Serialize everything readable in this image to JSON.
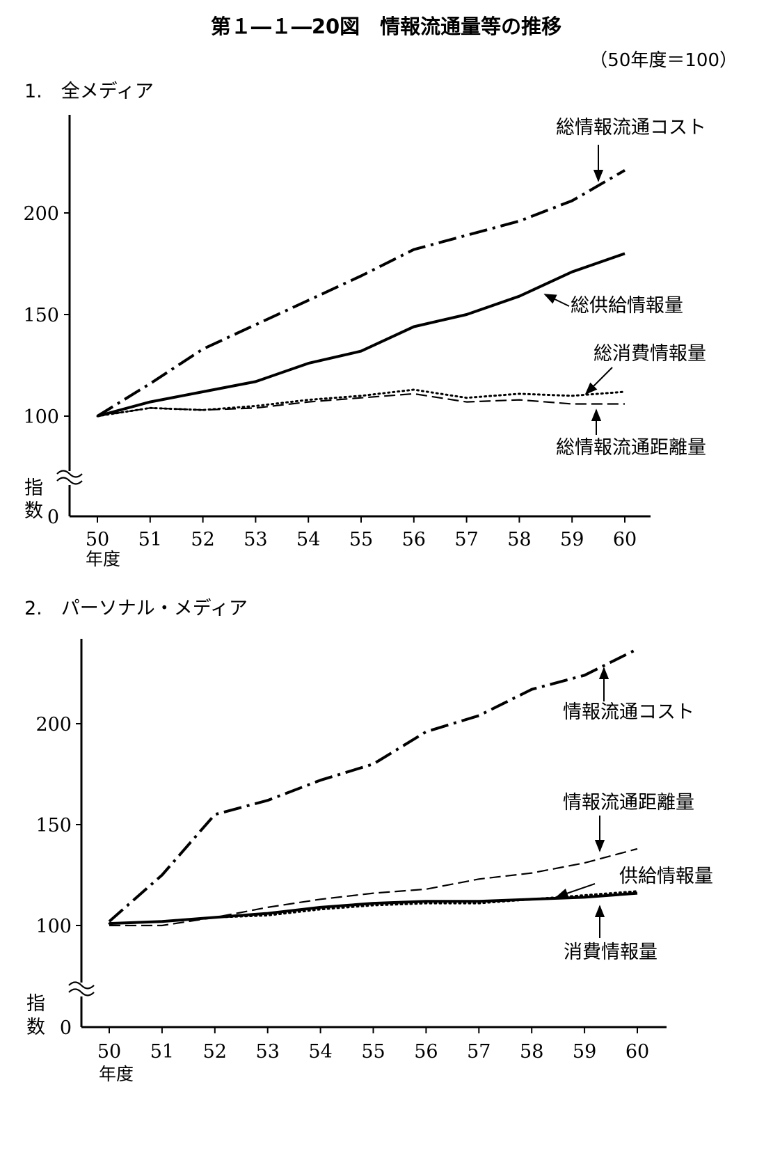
{
  "title": "第１―１―20図　情報流通量等の推移",
  "note": "（50年度＝100）",
  "chart_data": [
    {
      "type": "line",
      "panel_title": "1.　全メディア",
      "x": [
        "50",
        "51",
        "52",
        "53",
        "54",
        "55",
        "56",
        "57",
        "58",
        "59",
        "60"
      ],
      "x_axis_unit": "年度",
      "y_ticks": [
        "0",
        "100",
        "150",
        "200"
      ],
      "y_axis_label": "指数",
      "y_axis_broken": true,
      "ylim": [
        0,
        230
      ],
      "grid": false,
      "series": [
        {
          "name": "総情報流通コスト",
          "style": "dash-dot",
          "values": [
            100,
            116,
            133,
            145,
            157,
            169,
            182,
            189,
            196,
            206,
            221
          ]
        },
        {
          "name": "総供給情報量",
          "style": "solid",
          "values": [
            100,
            107,
            112,
            117,
            126,
            132,
            144,
            150,
            159,
            171,
            180
          ]
        },
        {
          "name": "総消費情報量",
          "style": "dotted",
          "values": [
            100,
            104,
            103,
            105,
            108,
            110,
            113,
            109,
            111,
            110,
            112
          ]
        },
        {
          "name": "総情報流通距離量",
          "style": "dashed",
          "values": [
            100,
            104,
            103,
            104,
            107,
            109,
            111,
            107,
            108,
            106,
            106
          ]
        }
      ]
    },
    {
      "type": "line",
      "panel_title": "2.　パーソナル・メディア",
      "x": [
        "50",
        "51",
        "52",
        "53",
        "54",
        "55",
        "56",
        "57",
        "58",
        "59",
        "60"
      ],
      "x_axis_unit": "年度",
      "y_ticks": [
        "0",
        "100",
        "150",
        "200"
      ],
      "y_axis_label": "指数",
      "y_axis_broken": true,
      "ylim": [
        0,
        240
      ],
      "grid": false,
      "series": [
        {
          "name": "情報流通コスト",
          "style": "dash-dot",
          "values": [
            102,
            125,
            155,
            162,
            172,
            180,
            196,
            204,
            217,
            224,
            237
          ]
        },
        {
          "name": "情報流通距離量",
          "style": "dashed",
          "values": [
            100,
            100,
            104,
            109,
            113,
            116,
            118,
            123,
            126,
            131,
            138
          ]
        },
        {
          "name": "供給情報量",
          "style": "solid",
          "values": [
            101,
            102,
            104,
            106,
            109,
            111,
            112,
            112,
            113,
            114,
            116
          ]
        },
        {
          "name": "消費情報量",
          "style": "dotted",
          "values": [
            101,
            102,
            104,
            105,
            108,
            110,
            111,
            111,
            113,
            115,
            117
          ]
        }
      ]
    }
  ]
}
